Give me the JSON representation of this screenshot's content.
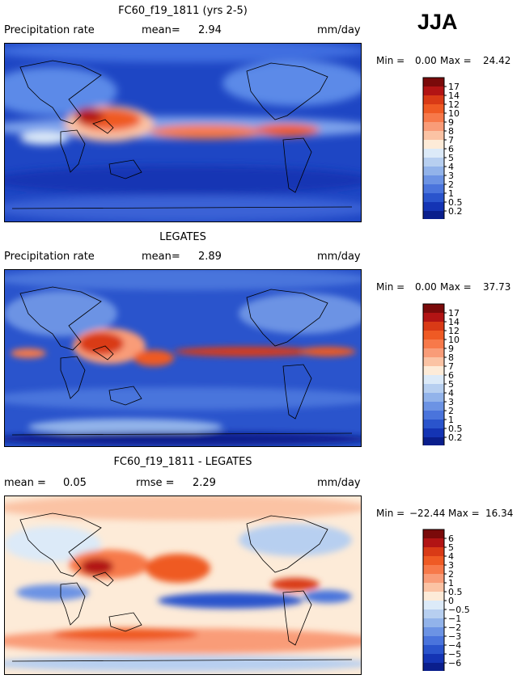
{
  "season": "JJA",
  "panels": [
    {
      "title": "FC60_f19_1811 (yrs 2-5)",
      "left_label": "Precipitation rate",
      "center_label": "mean=",
      "center_value": "2.94",
      "units": "mm/day",
      "min_label": "Min =",
      "min_value": "0.00",
      "max_label": "Max =",
      "max_value": "24.42"
    },
    {
      "title": "LEGATES",
      "left_label": "Precipitation rate",
      "center_label": "mean=",
      "center_value": "2.89",
      "units": "mm/day",
      "min_label": "Min =",
      "min_value": "0.00",
      "max_label": "Max =",
      "max_value": "37.73"
    },
    {
      "title": "FC60_f19_1811 - LEGATES",
      "left_label": "mean =",
      "left_value": "0.05",
      "center_label": "rmse =",
      "center_value": "2.29",
      "units": "mm/day",
      "min_label": "Min =",
      "min_value": "−22.44",
      "max_label": "Max =",
      "max_value": "16.34"
    }
  ],
  "chart_data": [
    {
      "type": "heatmap",
      "title": "FC60_f19_1811 (yrs 2-5)",
      "variable": "Precipitation rate",
      "units": "mm/day",
      "mean": 2.94,
      "min": 0.0,
      "max": 24.42,
      "colorbar": {
        "levels": [
          "17",
          "14",
          "12",
          "10",
          "9",
          "8",
          "7",
          "6",
          "5",
          "4",
          "3",
          "2",
          "1",
          "0.5",
          "0.2"
        ],
        "colors": [
          "#7a0a0a",
          "#b21414",
          "#d93a16",
          "#ef5a24",
          "#f7794a",
          "#f99c78",
          "#fbc3a4",
          "#fdebd8",
          "#dceaf8",
          "#b7cff0",
          "#92b3ea",
          "#6c93e4",
          "#4a74dc",
          "#2a54cc",
          "#1434b4",
          "#0a1e8c"
        ]
      }
    },
    {
      "type": "heatmap",
      "title": "LEGATES",
      "variable": "Precipitation rate",
      "units": "mm/day",
      "mean": 2.89,
      "min": 0.0,
      "max": 37.73,
      "colorbar": {
        "levels": [
          "17",
          "14",
          "12",
          "10",
          "9",
          "8",
          "7",
          "6",
          "5",
          "4",
          "3",
          "2",
          "1",
          "0.5",
          "0.2"
        ],
        "colors": [
          "#7a0a0a",
          "#b21414",
          "#d93a16",
          "#ef5a24",
          "#f7794a",
          "#f99c78",
          "#fbc3a4",
          "#fdebd8",
          "#dceaf8",
          "#b7cff0",
          "#92b3ea",
          "#6c93e4",
          "#4a74dc",
          "#2a54cc",
          "#1434b4",
          "#0a1e8c"
        ]
      }
    },
    {
      "type": "heatmap",
      "title": "FC60_f19_1811 - LEGATES",
      "units": "mm/day",
      "mean": 0.05,
      "rmse": 2.29,
      "min": -22.44,
      "max": 16.34,
      "colorbar": {
        "levels": [
          "6",
          "5",
          "4",
          "3",
          "2",
          "1",
          "0.5",
          "0",
          "−0.5",
          "−1",
          "−2",
          "−3",
          "−4",
          "−5",
          "−6"
        ],
        "colors": [
          "#7a0a0a",
          "#b21414",
          "#d93a16",
          "#ef5a24",
          "#f7794a",
          "#f99c78",
          "#fbc3a4",
          "#fdebd8",
          "#dceaf8",
          "#b7cff0",
          "#92b3ea",
          "#6c93e4",
          "#4a74dc",
          "#2a54cc",
          "#1434b4",
          "#0a1e8c"
        ]
      }
    }
  ]
}
